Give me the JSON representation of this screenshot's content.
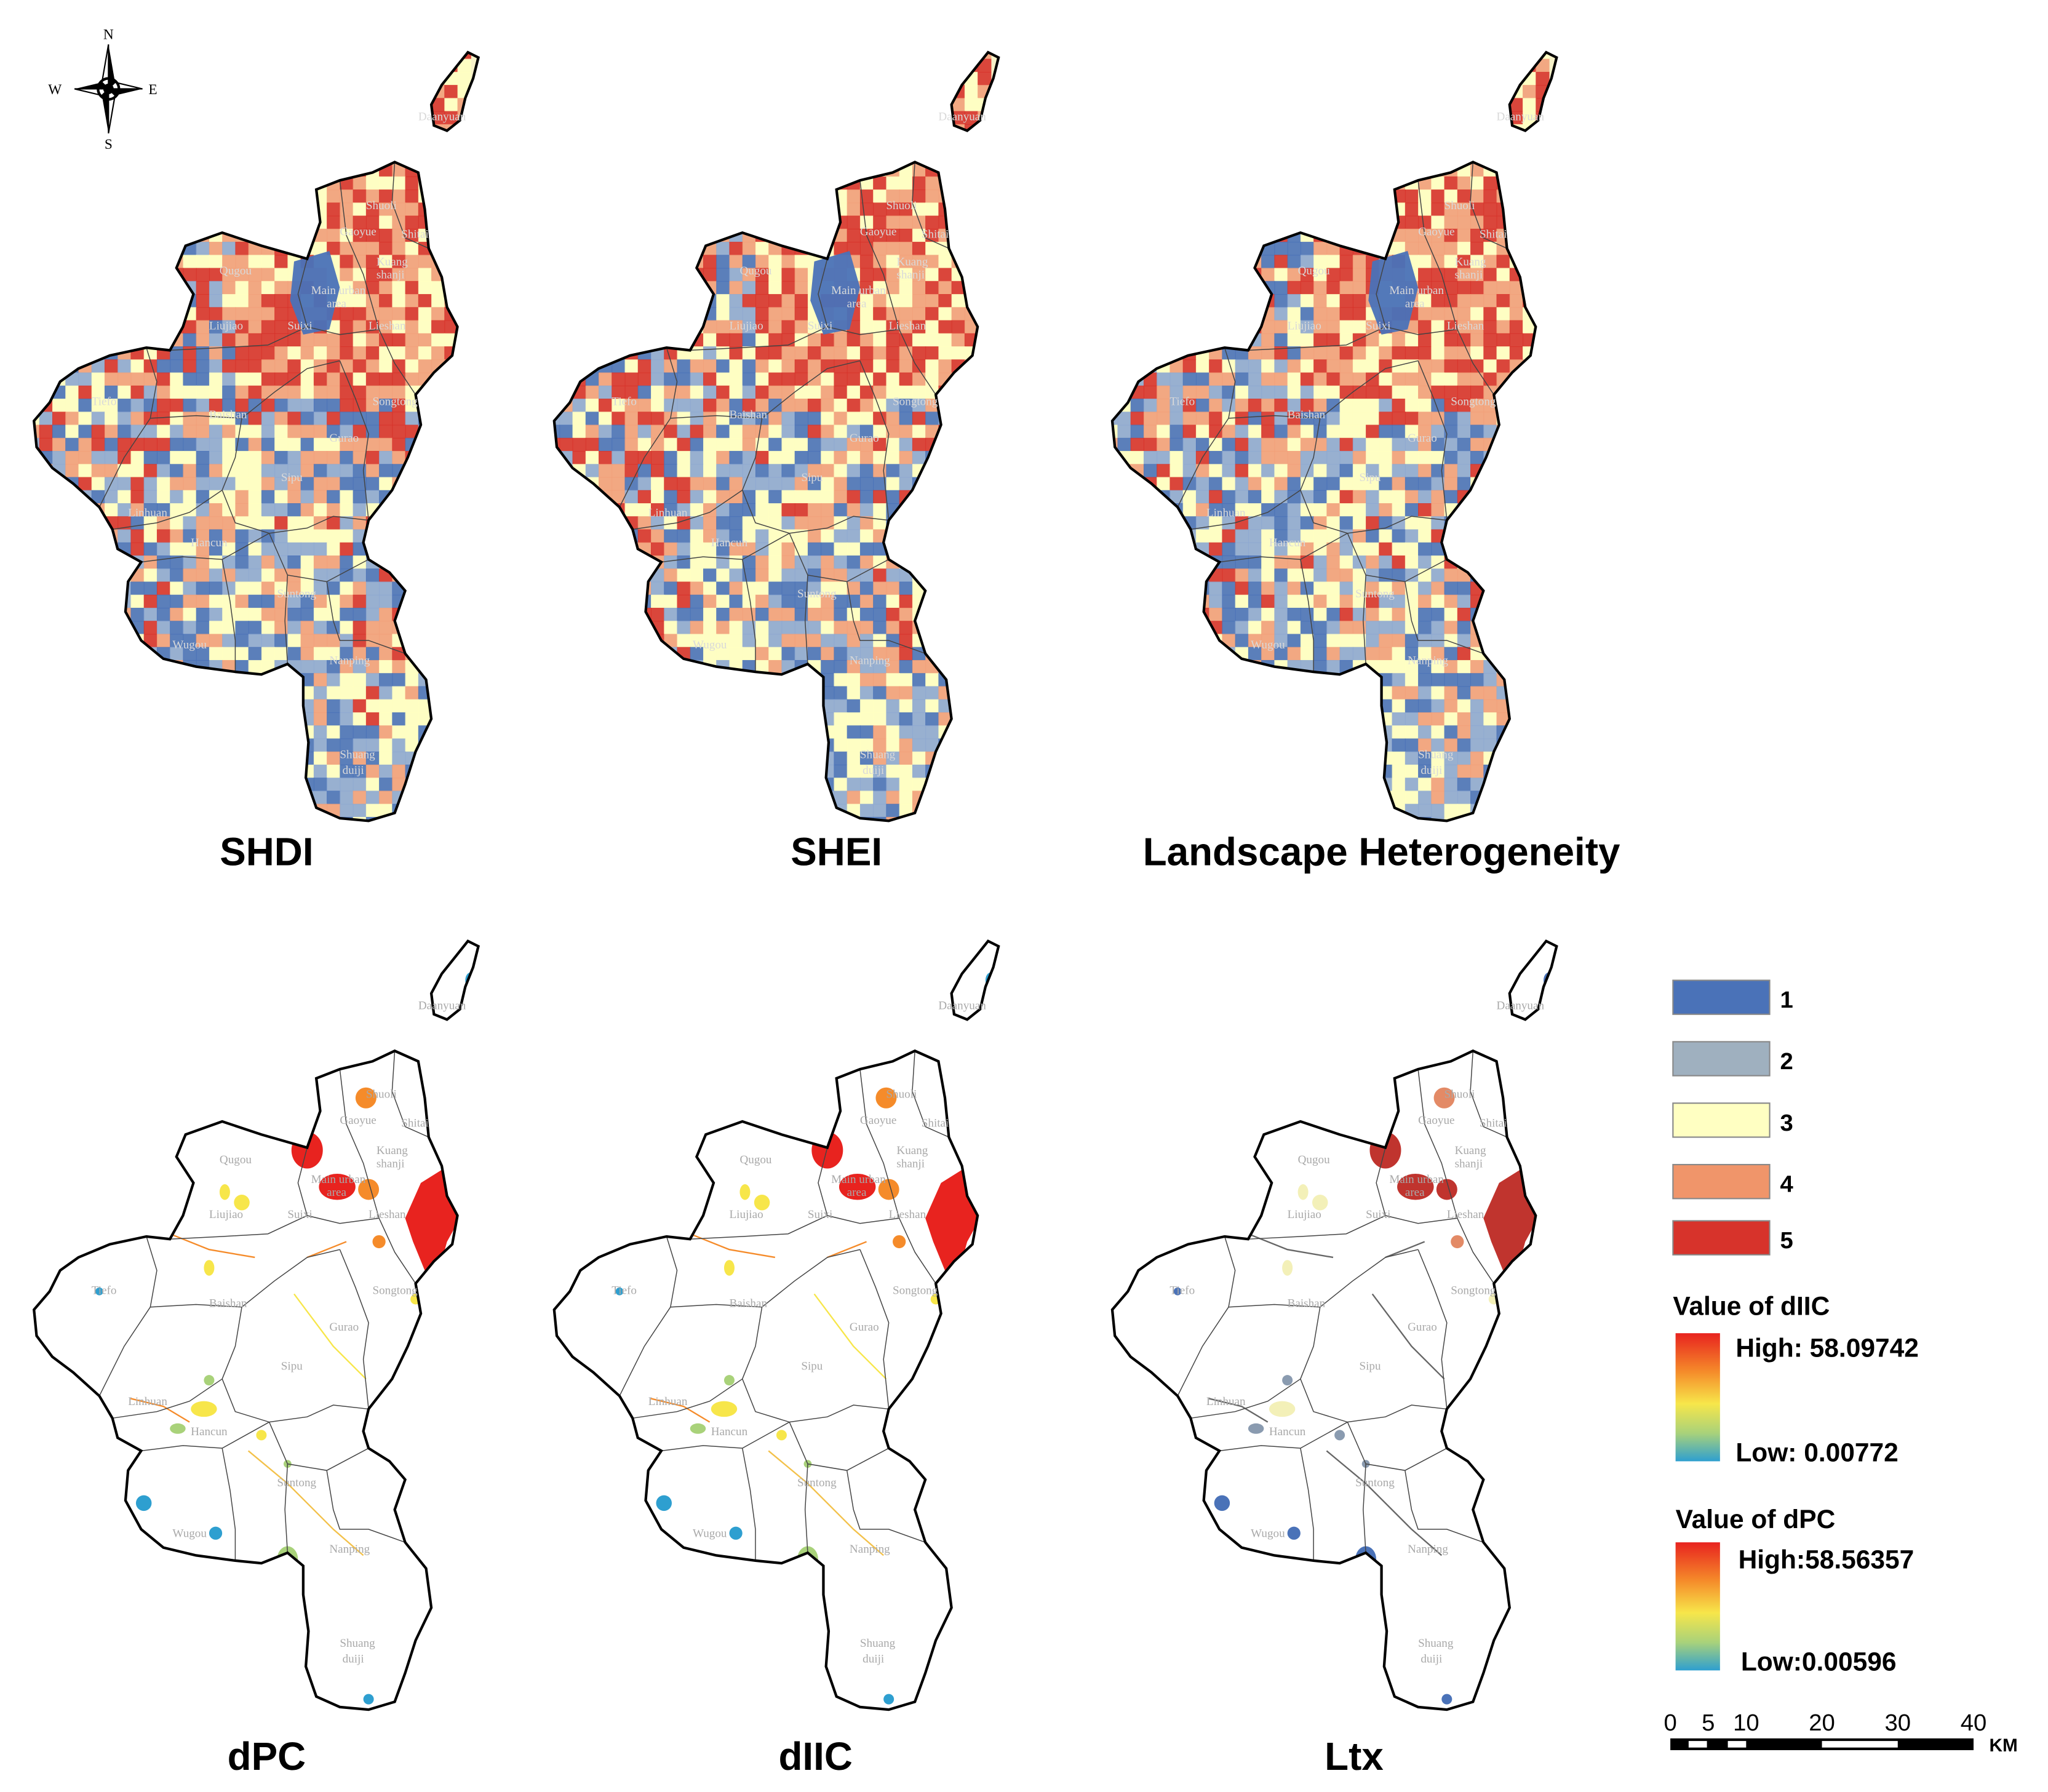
{
  "panels": [
    {
      "id": "shdi",
      "title": "SHDI",
      "kind": "heat"
    },
    {
      "id": "shei",
      "title": "SHEI",
      "kind": "heat"
    },
    {
      "id": "lh",
      "title": "Landscape Heterogeneity",
      "kind": "heat"
    },
    {
      "id": "dpc",
      "title": "dPC",
      "kind": "patch"
    },
    {
      "id": "diic",
      "title": "dIIC",
      "kind": "patch"
    },
    {
      "id": "ltx",
      "title": "Ltx",
      "kind": "class"
    }
  ],
  "towns": [
    "Daanyuan",
    "Shuoli",
    "Gaoyue",
    "Shitai",
    "Qugou",
    "Kuang shanji",
    "Main urban area",
    "Liujiao",
    "Suixi",
    "Lieshan",
    "Tiefo",
    "Baishan",
    "Songtong",
    "Gurao",
    "Sipu",
    "Linhuan",
    "Hancun",
    "Suntong",
    "Wugou",
    "Nanping",
    "Shuang duiji"
  ],
  "compass": {
    "n": "N",
    "s": "S",
    "e": "E",
    "w": "W"
  },
  "class_legend": {
    "items": [
      {
        "label": "1",
        "color": "#4a72b8"
      },
      {
        "label": "2",
        "color": "#9fb0bf"
      },
      {
        "label": "3",
        "color": "#ffffc2"
      },
      {
        "label": "4",
        "color": "#f0956a"
      },
      {
        "label": "5",
        "color": "#d7332b"
      }
    ]
  },
  "gradient_legends": [
    {
      "title": "Value of dIIC",
      "high": "High: 58.09742",
      "low": "Low: 0.00772"
    },
    {
      "title": "Value of dPC",
      "high": "High:58.56357",
      "low": "Low:0.00596"
    }
  ],
  "scale_bar": {
    "ticks": [
      "0",
      "5",
      "10",
      "20",
      "30",
      "40"
    ],
    "unit": "KM"
  },
  "colors": {
    "heat_low": "#4a72b8",
    "heat_mid": "#ffffc2",
    "heat_high": "#d7332b",
    "outline": "#000000"
  }
}
